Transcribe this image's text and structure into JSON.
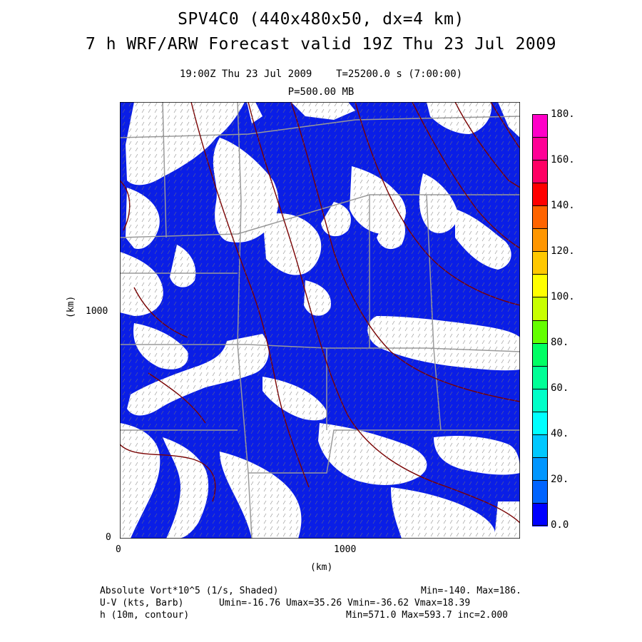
{
  "header": {
    "line1": "SPV4C0 (440x480x50, dx=4 km)",
    "line2": "7 h WRF/ARW Forecast valid 19Z Thu 23 Jul 2009",
    "time_line": "19:00Z Thu 23 Jul 2009    T=25200.0 s (7:00:00)",
    "pressure_line": "P=500.00 MB"
  },
  "axes": {
    "x_label": "(km)",
    "y_label": "(km)",
    "x_ticks": [
      "0",
      "1000"
    ],
    "y_ticks": [
      "0",
      "1000"
    ]
  },
  "colorbar": {
    "labels": [
      "180.",
      "160.",
      "140.",
      "120.",
      "100.",
      "80.",
      "60.",
      "40.",
      "20.",
      "0.0"
    ],
    "colors": [
      "#ff00c8",
      "#ff0096",
      "#ff0064",
      "#ff0000",
      "#ff6400",
      "#ff9600",
      "#ffc800",
      "#ffff00",
      "#c8ff00",
      "#64ff00",
      "#00ff64",
      "#00ff96",
      "#00ffc8",
      "#00ffff",
      "#00c8ff",
      "#0096ff",
      "#0064ff",
      "#0000ff"
    ]
  },
  "footer": {
    "row1_left": "Absolute Vort*10^5 (1/s, Shaded)",
    "row1_right": "Min=-140. Max=186.",
    "row2_left": "U-V (kts, Barb)",
    "row2_right": "Umin=-16.76 Umax=35.26 Vmin=-36.62 Vmax=18.39",
    "row3_left": "h (10m, contour)",
    "row3_right": "Min=571.0 Max=593.7 inc=2.000"
  },
  "map": {
    "shading_color": "#0a1ee6",
    "background_color": "#ffffff",
    "contour_color": "#7a0000",
    "border_color": "#9a9a9a"
  }
}
